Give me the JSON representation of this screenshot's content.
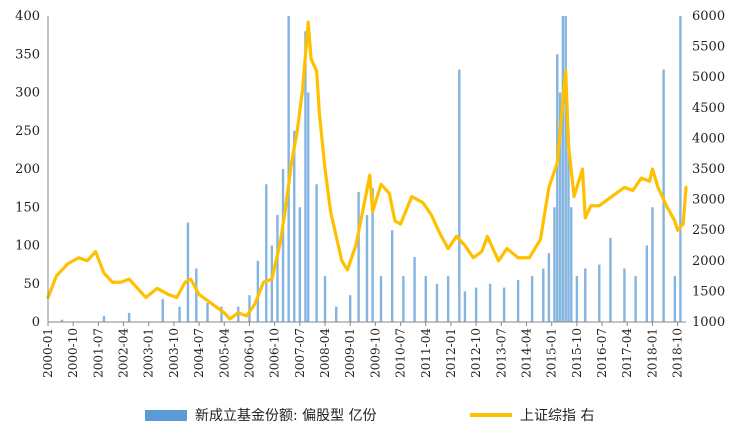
{
  "chart_data": {
    "type": "bar+line",
    "title": "",
    "left_axis": {
      "min": 0,
      "max": 400,
      "ticks": [
        0,
        50,
        100,
        150,
        200,
        250,
        300,
        350,
        400
      ]
    },
    "right_axis": {
      "min": 1000,
      "max": 6000,
      "ticks": [
        1000,
        1500,
        2000,
        2500,
        3000,
        3500,
        4000,
        4500,
        5000,
        5500,
        6000
      ]
    },
    "x_range": [
      "2000-01",
      "2019-01"
    ],
    "x_tick_labels": [
      "2000-01",
      "2000-10",
      "2001-07",
      "2002-04",
      "2003-01",
      "2003-10",
      "2004-07",
      "2005-04",
      "2006-01",
      "2006-10",
      "2007-07",
      "2008-04",
      "2009-01",
      "2009-10",
      "2010-07",
      "2011-04",
      "2012-01",
      "2012-10",
      "2013-07",
      "2014-04",
      "2015-01",
      "2015-10",
      "2016-07",
      "2017-04",
      "2018-01",
      "2018-10"
    ],
    "grid": false,
    "legend_position": "bottom",
    "series": [
      {
        "name": "新成立基金份额: 偏股型 亿份",
        "type": "bar",
        "axis": "left",
        "color": "#5b9bd5",
        "x": [
          "2000-06",
          "2001-09",
          "2002-06",
          "2003-06",
          "2003-12",
          "2004-03",
          "2004-06",
          "2004-10",
          "2005-03",
          "2005-09",
          "2006-01",
          "2006-04",
          "2006-07",
          "2006-09",
          "2006-11",
          "2007-01",
          "2007-03",
          "2007-05",
          "2007-07",
          "2007-09",
          "2007-10",
          "2008-01",
          "2008-04",
          "2008-08",
          "2009-01",
          "2009-04",
          "2009-07",
          "2009-09",
          "2009-12",
          "2010-04",
          "2010-08",
          "2010-12",
          "2011-04",
          "2011-08",
          "2011-12",
          "2012-04",
          "2012-06",
          "2012-10",
          "2013-03",
          "2013-08",
          "2014-01",
          "2014-06",
          "2014-10",
          "2014-12",
          "2015-02",
          "2015-03",
          "2015-04",
          "2015-05",
          "2015-06",
          "2015-07",
          "2015-08",
          "2015-10",
          "2016-01",
          "2016-06",
          "2016-10",
          "2017-03",
          "2017-07",
          "2017-11",
          "2018-01",
          "2018-05",
          "2018-09",
          "2018-11"
        ],
        "values": [
          3,
          8,
          12,
          30,
          20,
          130,
          70,
          25,
          20,
          20,
          35,
          80,
          180,
          100,
          140,
          200,
          400,
          250,
          150,
          380,
          300,
          180,
          60,
          20,
          35,
          170,
          140,
          175,
          60,
          120,
          60,
          85,
          60,
          50,
          60,
          330,
          40,
          45,
          50,
          45,
          55,
          60,
          70,
          90,
          150,
          350,
          300,
          400,
          400,
          250,
          150,
          60,
          70,
          75,
          110,
          70,
          60,
          100,
          150,
          330,
          60,
          400
        ]
      },
      {
        "name": "上证综指 右",
        "type": "line",
        "axis": "right",
        "color": "#ffc000",
        "x": [
          "2000-01",
          "2000-04",
          "2000-08",
          "2000-12",
          "2001-03",
          "2001-06",
          "2001-09",
          "2001-12",
          "2002-03",
          "2002-06",
          "2002-09",
          "2002-12",
          "2003-04",
          "2003-08",
          "2003-11",
          "2004-02",
          "2004-04",
          "2004-07",
          "2004-10",
          "2005-01",
          "2005-04",
          "2005-06",
          "2005-09",
          "2005-12",
          "2006-03",
          "2006-06",
          "2006-09",
          "2006-12",
          "2007-02",
          "2007-04",
          "2007-06",
          "2007-08",
          "2007-10",
          "2007-11",
          "2008-01",
          "2008-02",
          "2008-04",
          "2008-06",
          "2008-08",
          "2008-10",
          "2008-12",
          "2009-03",
          "2009-05",
          "2009-08",
          "2009-09",
          "2009-12",
          "2010-03",
          "2010-05",
          "2010-07",
          "2010-11",
          "2011-03",
          "2011-06",
          "2011-09",
          "2011-12",
          "2012-03",
          "2012-06",
          "2012-09",
          "2012-12",
          "2013-02",
          "2013-06",
          "2013-09",
          "2014-01",
          "2014-05",
          "2014-09",
          "2014-12",
          "2015-03",
          "2015-06",
          "2015-07",
          "2015-09",
          "2015-12",
          "2016-01",
          "2016-03",
          "2016-06",
          "2016-09",
          "2016-12",
          "2017-03",
          "2017-06",
          "2017-09",
          "2017-12",
          "2018-01",
          "2018-03",
          "2018-06",
          "2018-09",
          "2018-10",
          "2018-12",
          "2019-01"
        ],
        "values": [
          1400,
          1750,
          1950,
          2050,
          2000,
          2150,
          1800,
          1650,
          1650,
          1700,
          1550,
          1400,
          1550,
          1450,
          1400,
          1650,
          1700,
          1450,
          1350,
          1250,
          1150,
          1050,
          1150,
          1100,
          1300,
          1650,
          1700,
          2300,
          2900,
          3600,
          4100,
          4800,
          5900,
          5300,
          5100,
          4400,
          3500,
          2800,
          2400,
          2000,
          1850,
          2250,
          2700,
          3400,
          2800,
          3250,
          3100,
          2650,
          2600,
          3050,
          2950,
          2750,
          2450,
          2200,
          2400,
          2250,
          2050,
          2150,
          2400,
          2000,
          2200,
          2050,
          2050,
          2350,
          3200,
          3600,
          5100,
          3900,
          3050,
          3500,
          2700,
          2900,
          2900,
          3000,
          3100,
          3200,
          3150,
          3350,
          3300,
          3500,
          3200,
          2900,
          2650,
          2500,
          2600,
          3200
        ]
      }
    ]
  }
}
